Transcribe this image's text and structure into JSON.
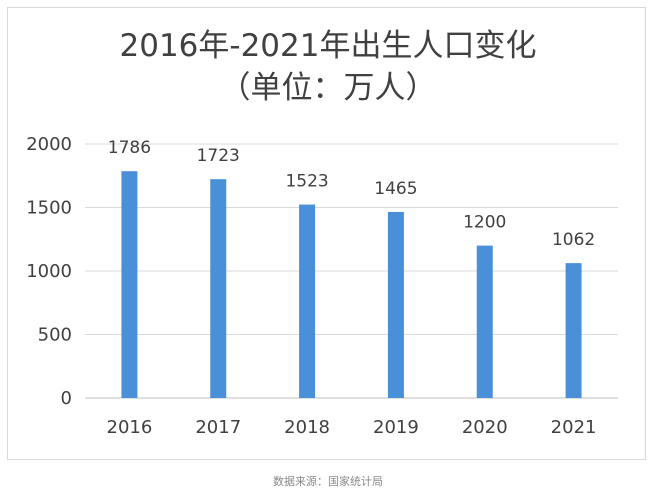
{
  "chart_data": {
    "type": "bar",
    "title": "2016年-2021年出生人口变化",
    "subtitle": "（单位：万人）",
    "categories": [
      "2016",
      "2017",
      "2018",
      "2019",
      "2020",
      "2021"
    ],
    "values": [
      1786,
      1723,
      1523,
      1465,
      1200,
      1062
    ],
    "data_labels": [
      "1786",
      "1723",
      "1523",
      "1465",
      "1200",
      "1062"
    ],
    "yticks": [
      "0",
      "500",
      "1000",
      "1500",
      "2000"
    ],
    "ytick_values": [
      0,
      500,
      1000,
      1500,
      2000
    ],
    "ylim": [
      0,
      2000
    ],
    "grid": true,
    "bar_color": "#4a90d9",
    "xlabel": "",
    "ylabel": ""
  },
  "caption": "数据来源：国家统计局"
}
